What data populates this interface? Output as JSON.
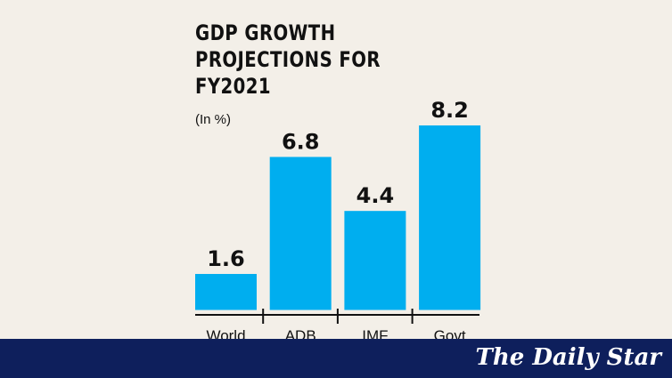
{
  "chart_data": {
    "type": "bar",
    "title": "GDP GROWTH PROJECTIONS FOR FY2021",
    "subtitle": "(In %)",
    "categories": [
      "World",
      "ADB",
      "IMF",
      "Govt"
    ],
    "values": [
      1.6,
      6.8,
      4.4,
      8.2
    ],
    "ylim": [
      0,
      8.2
    ],
    "grid": false,
    "bar_color": "#00aeef"
  },
  "brand": {
    "logo": "The Daily Star",
    "banner_color": "#0e1f5c"
  }
}
